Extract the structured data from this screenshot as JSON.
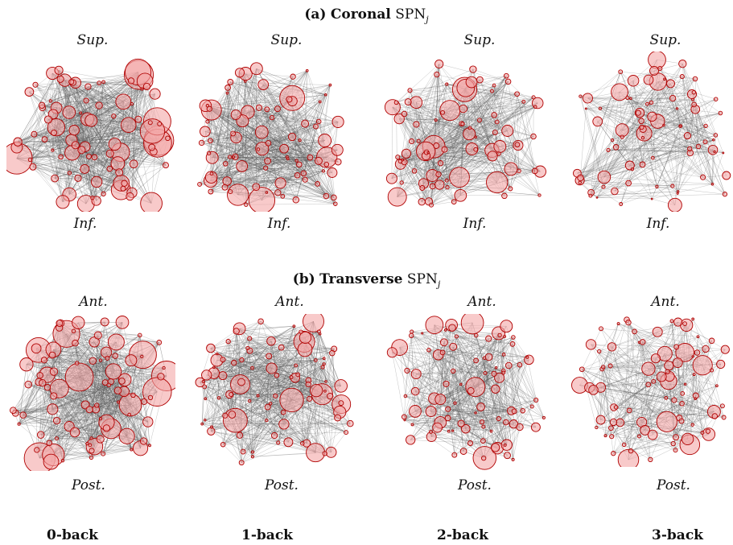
{
  "panel_a": {
    "label": "(a)",
    "view": "Coronal",
    "metric": "SPN",
    "metric_sub": "j",
    "top_label": "Sup.",
    "bottom_label": "Inf."
  },
  "panel_b": {
    "label": "(b)",
    "view": "Transverse",
    "metric": "SPN",
    "metric_sub": "j",
    "top_label": "Ant.",
    "bottom_label": "Post."
  },
  "conditions": [
    "0-back",
    "1-back",
    "2-back",
    "3-back"
  ],
  "colors": {
    "node_fill": "#f4a6a6",
    "node_stroke": "#b00000",
    "edge": "#555555"
  }
}
